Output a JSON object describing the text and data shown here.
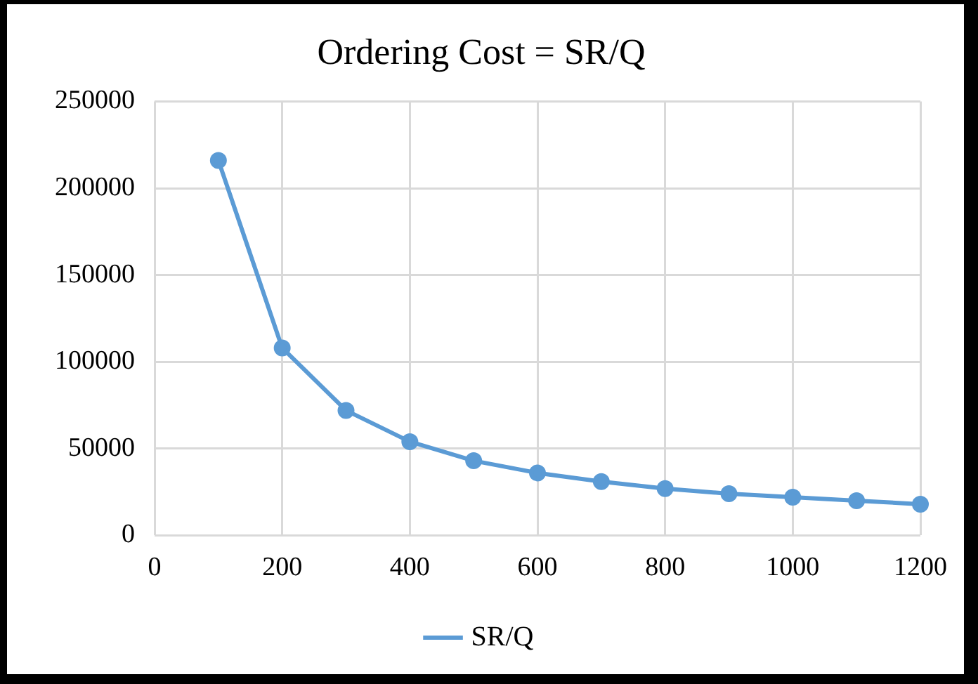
{
  "chart_data": {
    "type": "line",
    "title": "Ordering Cost = SR/Q",
    "x": [
      100,
      200,
      300,
      400,
      500,
      600,
      700,
      800,
      900,
      1000,
      1100,
      1200
    ],
    "series": [
      {
        "name": "SR/Q",
        "color": "#5b9bd5",
        "values": [
          216000,
          108000,
          72000,
          54000,
          43000,
          36000,
          31000,
          27000,
          24000,
          22000,
          20000,
          18000
        ]
      }
    ],
    "xlim": [
      0,
      1200
    ],
    "xticks": [
      0,
      200,
      400,
      600,
      800,
      1000,
      1200
    ],
    "ylim": [
      0,
      250000
    ],
    "yticks": [
      0,
      50000,
      100000,
      150000,
      200000,
      250000
    ],
    "grid": true,
    "legend": "bottom",
    "marker": "circle",
    "line_style": "solid"
  }
}
